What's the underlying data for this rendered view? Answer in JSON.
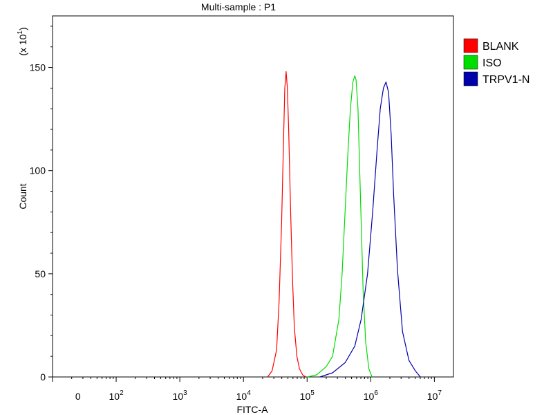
{
  "chart_data": {
    "type": "line",
    "title": "Multi-sample : P1",
    "xlabel": "FITC-A",
    "ylabel": "Count",
    "y_multiplier_label": "(x 10",
    "y_multiplier_exponent": "1",
    "xscale": "biexponential (log decades)",
    "xlim_log10": [
      1.0,
      7.3
    ],
    "ylim": [
      0,
      175
    ],
    "y_ticks": [
      0,
      50,
      100,
      150
    ],
    "y_tick_labels": [
      "0",
      "50",
      "100",
      "150"
    ],
    "x_tick_labels": [
      {
        "base": "0",
        "exp": ""
      },
      {
        "base": "10",
        "exp": "2"
      },
      {
        "base": "10",
        "exp": "3"
      },
      {
        "base": "10",
        "exp": "4"
      },
      {
        "base": "10",
        "exp": "5"
      },
      {
        "base": "10",
        "exp": "6"
      },
      {
        "base": "10",
        "exp": "7"
      }
    ],
    "x_tick_log10": [
      1.4,
      2.0,
      3.0,
      4.0,
      5.0,
      6.0,
      7.0
    ],
    "grid": false,
    "legend_position": "right",
    "series": [
      {
        "name": "BLANK",
        "color": "#ff0000",
        "x_log10": [
          4.38,
          4.45,
          4.52,
          4.56,
          4.6,
          4.63,
          4.65,
          4.67,
          4.69,
          4.71,
          4.74,
          4.77,
          4.8,
          4.84,
          4.88,
          4.93,
          4.98
        ],
        "y": [
          0,
          3,
          13,
          36,
          75,
          115,
          140,
          148,
          140,
          120,
          82,
          48,
          24,
          10,
          4,
          1,
          0
        ]
      },
      {
        "name": "ISO",
        "color": "#00dd00",
        "x_log10": [
          5.0,
          5.15,
          5.3,
          5.4,
          5.5,
          5.55,
          5.6,
          5.64,
          5.68,
          5.72,
          5.75,
          5.77,
          5.8,
          5.82,
          5.85,
          5.88,
          5.92,
          5.97,
          6.02
        ],
        "y": [
          0,
          1,
          5,
          10,
          28,
          50,
          82,
          108,
          130,
          143,
          146,
          144,
          130,
          108,
          75,
          42,
          17,
          4,
          0
        ]
      },
      {
        "name": "TRPV1-N",
        "color": "#0000aa",
        "x_log10": [
          5.2,
          5.4,
          5.6,
          5.75,
          5.85,
          5.95,
          6.03,
          6.1,
          6.15,
          6.2,
          6.24,
          6.28,
          6.32,
          6.36,
          6.42,
          6.5,
          6.6,
          6.7,
          6.78
        ],
        "y": [
          0,
          2,
          7,
          15,
          28,
          50,
          80,
          110,
          130,
          140,
          143,
          138,
          118,
          88,
          52,
          22,
          8,
          3,
          0
        ]
      }
    ]
  }
}
